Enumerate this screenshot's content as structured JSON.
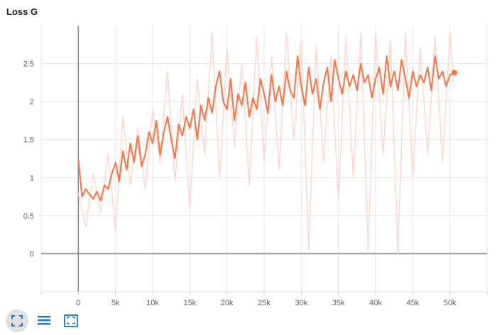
{
  "chart_data": {
    "type": "line",
    "title": "Loss G",
    "xlabel": "",
    "ylabel": "",
    "xlim": [
      -5000,
      55000
    ],
    "ylim": [
      -0.5,
      3.0
    ],
    "x_ticks": [
      0,
      5000,
      10000,
      15000,
      20000,
      25000,
      30000,
      35000,
      40000,
      45000,
      50000
    ],
    "x_tick_labels": [
      "0",
      "5k",
      "10k",
      "15k",
      "20k",
      "25k",
      "30k",
      "35k",
      "40k",
      "45k",
      "50k"
    ],
    "y_ticks": [
      0,
      0.5,
      1,
      1.5,
      2,
      2.5
    ],
    "y_tick_labels": [
      "0",
      "0.5",
      "1",
      "1.5",
      "2",
      "2.5"
    ],
    "grid": true,
    "series": [
      {
        "role": "raw",
        "color": "#ffd7cc",
        "x": [
          0,
          1000,
          2000,
          3000,
          4000,
          5000,
          6000,
          7000,
          8000,
          9000,
          10000,
          11000,
          12000,
          13000,
          14000,
          15000,
          16000,
          17000,
          18000,
          19000,
          20000,
          21000,
          22000,
          23000,
          24000,
          25000,
          26000,
          27000,
          28000,
          29000,
          30000,
          31000,
          32000,
          33000,
          34000,
          35000,
          36000,
          37000,
          38000,
          39000,
          40000,
          41000,
          42000,
          43000,
          44000,
          45000,
          46000,
          47000,
          48000,
          49000,
          50000,
          50600
        ],
        "y": [
          0.8,
          0.35,
          1.05,
          0.55,
          1.3,
          0.3,
          1.8,
          0.9,
          1.65,
          0.85,
          1.9,
          1.2,
          2.4,
          0.95,
          2.1,
          0.6,
          2.3,
          1.3,
          2.9,
          1.0,
          2.7,
          1.4,
          2.5,
          0.9,
          2.85,
          1.2,
          2.6,
          1.1,
          2.9,
          1.5,
          2.8,
          0.05,
          2.75,
          1.2,
          2.6,
          0.7,
          2.85,
          1.0,
          2.9,
          0.05,
          2.9,
          1.3,
          2.8,
          0.0,
          2.9,
          1.0,
          2.7,
          1.3,
          2.85,
          1.2,
          2.9,
          2.2
        ]
      },
      {
        "role": "smoothed",
        "color": "#ff7043",
        "x": [
          0,
          500,
          1000,
          1500,
          2000,
          2500,
          3000,
          3500,
          4000,
          4500,
          5000,
          5500,
          6000,
          6500,
          7000,
          7500,
          8000,
          8500,
          9000,
          9500,
          10000,
          10500,
          11000,
          11500,
          12000,
          12500,
          13000,
          13500,
          14000,
          14500,
          15000,
          15500,
          16000,
          16500,
          17000,
          17500,
          18000,
          18500,
          19000,
          19500,
          20000,
          20500,
          21000,
          21500,
          22000,
          22500,
          23000,
          23500,
          24000,
          24500,
          25000,
          25500,
          26000,
          26500,
          27000,
          27500,
          28000,
          28500,
          29000,
          29500,
          30000,
          30500,
          31000,
          31500,
          32000,
          32500,
          33000,
          33500,
          34000,
          34500,
          35000,
          35500,
          36000,
          36500,
          37000,
          37500,
          38000,
          38500,
          39000,
          39500,
          40000,
          40500,
          41000,
          41500,
          42000,
          42500,
          43000,
          43500,
          44000,
          44500,
          45000,
          45500,
          46000,
          46500,
          47000,
          47500,
          48000,
          48500,
          49000,
          49500,
          50000,
          50600
        ],
        "y": [
          1.25,
          0.75,
          0.85,
          0.78,
          0.72,
          0.82,
          0.7,
          0.9,
          0.85,
          1.05,
          1.2,
          0.95,
          1.35,
          1.1,
          1.45,
          1.2,
          1.55,
          1.15,
          1.3,
          1.6,
          1.45,
          1.75,
          1.3,
          1.6,
          1.8,
          1.5,
          1.25,
          1.7,
          1.55,
          1.8,
          1.65,
          1.9,
          1.5,
          1.95,
          1.75,
          2.05,
          1.85,
          2.2,
          2.4,
          2.0,
          1.9,
          2.3,
          1.75,
          2.1,
          1.95,
          2.25,
          1.8,
          2.05,
          1.9,
          2.3,
          2.1,
          1.85,
          2.35,
          2.0,
          2.2,
          1.95,
          2.4,
          2.15,
          2.05,
          2.6,
          2.2,
          1.95,
          2.45,
          2.1,
          2.3,
          1.9,
          2.25,
          2.45,
          2.0,
          2.55,
          2.3,
          2.1,
          2.4,
          2.2,
          2.35,
          2.15,
          2.5,
          2.25,
          2.35,
          2.05,
          2.3,
          2.45,
          2.1,
          2.6,
          2.2,
          2.4,
          2.15,
          2.55,
          2.3,
          2.05,
          2.4,
          2.2,
          2.35,
          2.25,
          2.45,
          2.15,
          2.6,
          2.3,
          2.4,
          2.2,
          2.35,
          2.38
        ]
      }
    ]
  },
  "toolbar": {
    "buttons": [
      {
        "icon": "fit-domain-icon",
        "active": true
      },
      {
        "icon": "data-table-icon",
        "active": false
      },
      {
        "icon": "expand-icon",
        "active": false
      }
    ]
  }
}
